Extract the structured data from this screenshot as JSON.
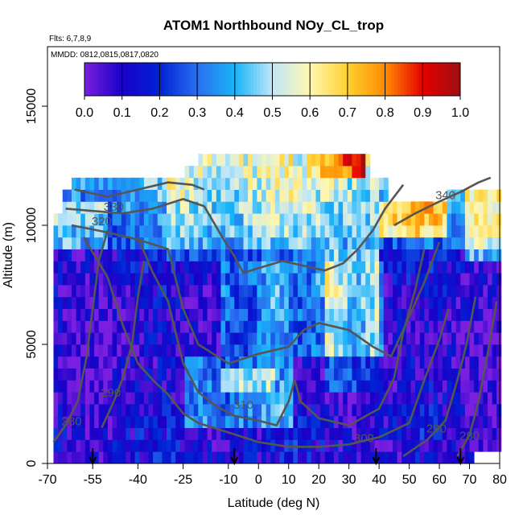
{
  "chart_data": {
    "type": "heatmap",
    "title": "ATOM1 Northbound NOy_CL_trop",
    "annotations": [
      "Flts: 6,7,8,9",
      "MMDD: 0812,0815,0817,0820"
    ],
    "xlabel": "Latitude (deg N)",
    "ylabel": "Altitude (m)",
    "xlim": [
      -70,
      80
    ],
    "ylim": [
      0,
      17500
    ],
    "x_ticks": [
      -70,
      -55,
      -40,
      -25,
      -10,
      0,
      10,
      20,
      30,
      40,
      50,
      60,
      70,
      80
    ],
    "x_tick_labels": [
      "-70",
      "-55",
      "-40",
      "-25",
      "-10",
      "0",
      "10",
      "20",
      "30",
      "40",
      "50",
      "60",
      "70",
      "80"
    ],
    "y_ticks": [
      0,
      5000,
      10000,
      15000
    ],
    "y_tick_labels": [
      "0",
      "5000",
      "10000",
      "15000"
    ],
    "colorbar": {
      "min": 0.0,
      "max": 1.0,
      "ticks": [
        0.0,
        0.1,
        0.2,
        0.3,
        0.4,
        0.5,
        0.6,
        0.7,
        0.8,
        0.9,
        1.0
      ],
      "tick_labels": [
        "0.0",
        "0.1",
        "0.2",
        "0.3",
        "0.4",
        "0.5",
        "0.6",
        "0.7",
        "0.8",
        "0.9",
        "1.0"
      ],
      "colors": [
        "#7a1fe0",
        "#1a00c8",
        "#0022d4",
        "#2a6ef0",
        "#18b4f8",
        "#bfe6f8",
        "#fff7b0",
        "#ffd030",
        "#ff8c00",
        "#e60000",
        "#9e0e10"
      ]
    },
    "contour_labels": [
      {
        "label": "330",
        "x": -48,
        "y": 10600
      },
      {
        "label": "320",
        "x": -52,
        "y": 10000
      },
      {
        "label": "340",
        "x": 62,
        "y": 11100
      },
      {
        "label": "310",
        "x": -5,
        "y": 2300
      },
      {
        "label": "300",
        "x": 35,
        "y": 900
      },
      {
        "label": "290",
        "x": -49,
        "y": 2800
      },
      {
        "label": "280",
        "x": -62,
        "y": 1600
      },
      {
        "label": "290",
        "x": 59,
        "y": 1300
      },
      {
        "label": "280",
        "x": 70,
        "y": 1000
      }
    ],
    "profile_arrows_lat": [
      -55,
      -8,
      39,
      67
    ],
    "contours": [
      {
        "level": 280,
        "points": [
          [
            -68,
            900
          ],
          [
            -64,
            1600
          ],
          [
            -60,
            2600
          ],
          [
            -57,
            4500
          ],
          [
            -55,
            6500
          ],
          [
            -53,
            8500
          ],
          [
            -50,
            9800
          ]
        ]
      },
      {
        "level": 280,
        "points": [
          [
            66,
            300
          ],
          [
            70,
            1200
          ],
          [
            73,
            2600
          ],
          [
            76,
            4600
          ],
          [
            79,
            6800
          ]
        ]
      },
      {
        "level": 290,
        "points": [
          [
            -52,
            1500
          ],
          [
            -48,
            2600
          ],
          [
            -45,
            3600
          ],
          [
            -42,
            5000
          ],
          [
            -40,
            7000
          ],
          [
            -38,
            8500
          ]
        ]
      },
      {
        "level": 290,
        "points": [
          [
            48,
            300
          ],
          [
            56,
            1000
          ],
          [
            62,
            1800
          ],
          [
            66,
            3500
          ],
          [
            69,
            5000
          ],
          [
            72,
            7000
          ]
        ]
      },
      {
        "level": 300,
        "points": [
          [
            -58,
            9500
          ],
          [
            -50,
            7800
          ],
          [
            -45,
            5800
          ],
          [
            -40,
            4200
          ],
          [
            -35,
            3500
          ],
          [
            -30,
            2900
          ],
          [
            -25,
            2100
          ],
          [
            -20,
            1700
          ],
          [
            -10,
            1300
          ],
          [
            0,
            900
          ],
          [
            10,
            700
          ],
          [
            20,
            700
          ],
          [
            30,
            800
          ],
          [
            40,
            1100
          ],
          [
            50,
            1700
          ],
          [
            55,
            3500
          ],
          [
            60,
            5200
          ],
          [
            63,
            6500
          ]
        ]
      },
      {
        "level": 310,
        "points": [
          [
            -40,
            9500
          ],
          [
            -35,
            8000
          ],
          [
            -30,
            6800
          ],
          [
            -25,
            4200
          ],
          [
            -20,
            3000
          ],
          [
            -14,
            2400
          ],
          [
            -8,
            2000
          ],
          [
            0,
            1800
          ],
          [
            6,
            1600
          ],
          [
            10,
            2600
          ],
          [
            12,
            3500
          ],
          [
            14,
            2600
          ],
          [
            20,
            1900
          ],
          [
            30,
            1600
          ],
          [
            40,
            2300
          ],
          [
            45,
            3600
          ],
          [
            48,
            5500
          ],
          [
            52,
            7300
          ],
          [
            55,
            9000
          ]
        ]
      },
      {
        "level": 320,
        "points": [
          [
            -62,
            10000
          ],
          [
            -50,
            9700
          ],
          [
            -40,
            9400
          ],
          [
            -30,
            9000
          ],
          [
            -25,
            6500
          ],
          [
            -20,
            5000
          ],
          [
            -15,
            4600
          ],
          [
            -10,
            4200
          ],
          [
            0,
            4600
          ],
          [
            10,
            4900
          ],
          [
            15,
            5600
          ],
          [
            20,
            5900
          ],
          [
            30,
            5600
          ],
          [
            38,
            4900
          ],
          [
            44,
            4500
          ],
          [
            48,
            5600
          ],
          [
            55,
            7600
          ],
          [
            60,
            9300
          ]
        ]
      },
      {
        "level": 330,
        "points": [
          [
            -64,
            10700
          ],
          [
            -55,
            10600
          ],
          [
            -45,
            10500
          ],
          [
            -35,
            10700
          ],
          [
            -25,
            11100
          ],
          [
            -18,
            10800
          ],
          [
            -12,
            9500
          ],
          [
            -8,
            8700
          ],
          [
            -5,
            8000
          ],
          [
            0,
            8200
          ],
          [
            8,
            8500
          ],
          [
            15,
            8300
          ],
          [
            22,
            8100
          ],
          [
            28,
            8400
          ],
          [
            33,
            9000
          ],
          [
            38,
            9800
          ],
          [
            42,
            10700
          ],
          [
            48,
            11700
          ]
        ]
      },
      {
        "level": 340,
        "points": [
          [
            -61,
            11500
          ],
          [
            -50,
            11200
          ],
          [
            -40,
            11500
          ],
          [
            -30,
            11800
          ],
          [
            -22,
            11700
          ],
          [
            -18,
            11500
          ]
        ]
      },
      {
        "level": 340,
        "points": [
          [
            45,
            10000
          ],
          [
            52,
            10500
          ],
          [
            60,
            11000
          ],
          [
            67,
            11400
          ],
          [
            73,
            11800
          ],
          [
            77,
            12000
          ]
        ]
      }
    ]
  }
}
